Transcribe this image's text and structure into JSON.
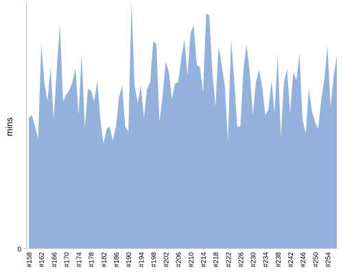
{
  "chart_data": {
    "type": "area",
    "ylabel": "mins",
    "color": "#92b2dc",
    "categories": [
      "#158",
      null,
      null,
      null,
      "#162",
      null,
      null,
      null,
      "#166",
      null,
      null,
      null,
      "#170",
      null,
      null,
      null,
      "#174",
      null,
      null,
      null,
      "#178",
      null,
      null,
      null,
      "#182",
      null,
      null,
      null,
      "#186",
      null,
      null,
      null,
      "#190",
      null,
      null,
      null,
      "#194",
      null,
      null,
      null,
      "#198",
      null,
      null,
      null,
      "#202",
      null,
      null,
      null,
      "#206",
      null,
      null,
      null,
      "#210",
      null,
      null,
      null,
      "#214",
      null,
      null,
      null,
      "#218",
      null,
      null,
      null,
      "#222",
      null,
      null,
      null,
      "#226",
      null,
      null,
      null,
      "#230",
      null,
      null,
      null,
      "#234",
      null,
      null,
      null,
      "#238",
      null,
      null,
      null,
      "#242",
      null,
      null,
      null,
      "#246",
      null,
      null,
      null,
      "#250",
      null,
      null,
      null,
      "#254",
      null,
      null,
      null
    ],
    "values": [
      19.1,
      19.5,
      17.8,
      16.1,
      29.8,
      24.3,
      21.5,
      26.5,
      18.8,
      26.3,
      32.8,
      21.5,
      22.5,
      23.1,
      24.3,
      26.3,
      19.5,
      28.5,
      17.7,
      23.3,
      23.1,
      21.5,
      24.5,
      18.8,
      15.3,
      17.5,
      17.8,
      15.8,
      17.8,
      22.1,
      23.8,
      17.8,
      17.1,
      35.9,
      23.8,
      21.3,
      23.8,
      19.1,
      23.3,
      24.3,
      30.3,
      29.8,
      18.5,
      22.3,
      27.3,
      25.8,
      21.8,
      24.1,
      24.3,
      27.8,
      30.5,
      25.3,
      31.5,
      32.6,
      26.8,
      26.5,
      22.8,
      34.3,
      34.1,
      25.8,
      20.8,
      29.5,
      26.8,
      23.8,
      15.8,
      30.5,
      24.8,
      17.8,
      17.9,
      26.3,
      29.8,
      25.8,
      19.5,
      24.3,
      26.1,
      23.8,
      19.5,
      20.3,
      24.5,
      19.8,
      28.3,
      16.3,
      24.3,
      26.3,
      19.8,
      25.8,
      24.6,
      28.3,
      18.8,
      16.8,
      23.3,
      20.1,
      18.5,
      17.5,
      21.8,
      24.8,
      29.5,
      20.8,
      25.3,
      28.1
    ],
    "ylim": [
      0,
      35.9
    ],
    "yticks": [
      0
    ]
  }
}
